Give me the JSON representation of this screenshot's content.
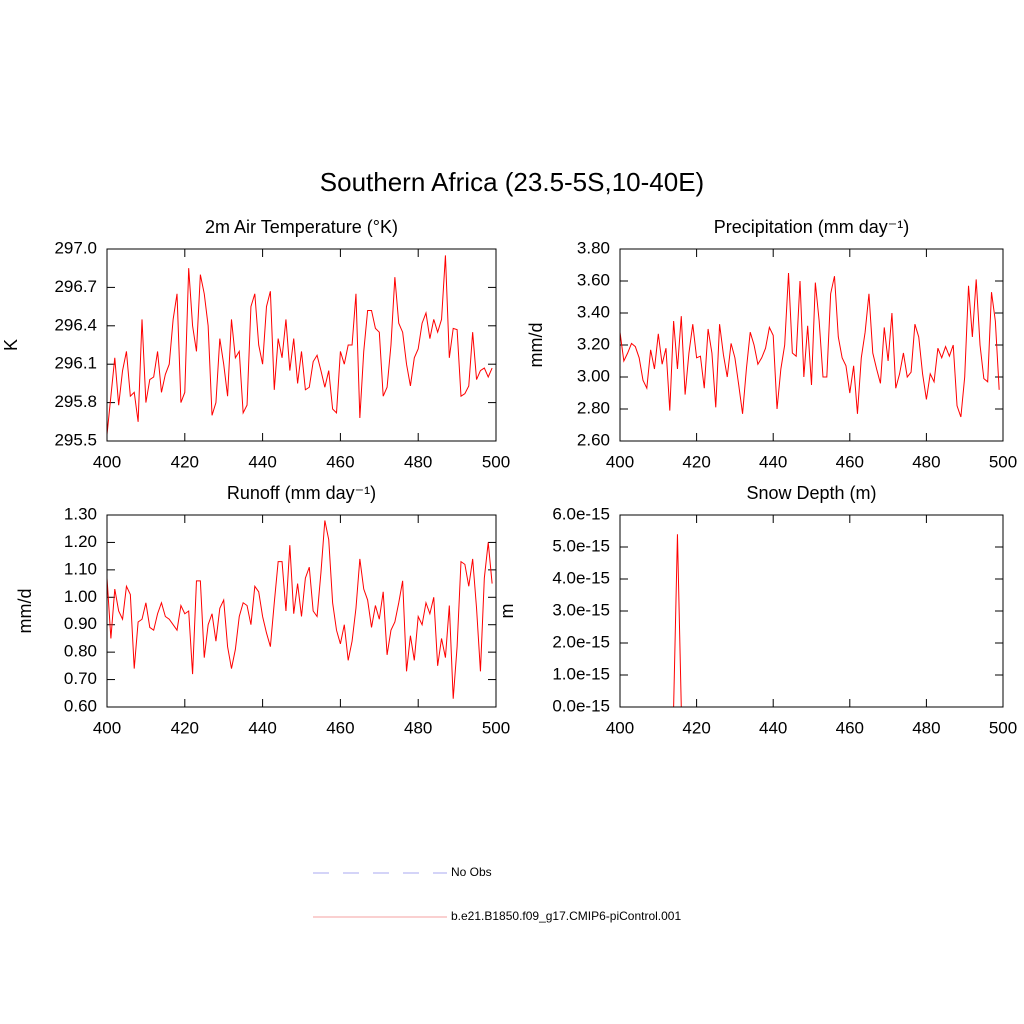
{
  "title": "Southern Africa (23.5-5S,10-40E)",
  "legend": [
    {
      "name": "No Obs",
      "color": "#a8a8f0",
      "dash": true
    },
    {
      "name": "b.e21.B1850.f09_g17.CMIP6-piControl.001",
      "color": "#f4a0a0",
      "dash": false
    }
  ],
  "chart_data": [
    {
      "type": "line",
      "title": "2m Air Temperature (°K)",
      "y_label": "K",
      "color": "#ff0000",
      "x": [
        400,
        401,
        402,
        403,
        404,
        405,
        406,
        407,
        408,
        409,
        410,
        411,
        412,
        413,
        414,
        415,
        416,
        417,
        418,
        419,
        420,
        421,
        422,
        423,
        424,
        425,
        426,
        427,
        428,
        429,
        430,
        431,
        432,
        433,
        434,
        435,
        436,
        437,
        438,
        439,
        440,
        441,
        442,
        443,
        444,
        445,
        446,
        447,
        448,
        449,
        450,
        451,
        452,
        453,
        454,
        455,
        456,
        457,
        458,
        459,
        460,
        461,
        462,
        463,
        464,
        465,
        466,
        467,
        468,
        469,
        470,
        471,
        472,
        473,
        474,
        475,
        476,
        477,
        478,
        479,
        480,
        481,
        482,
        483,
        484,
        485,
        486,
        487,
        488,
        489,
        490,
        491,
        492,
        493,
        494,
        495,
        496,
        497,
        498,
        499
      ],
      "values": [
        295.55,
        295.85,
        296.15,
        295.78,
        296.05,
        296.2,
        295.85,
        295.88,
        295.65,
        296.45,
        295.8,
        295.98,
        296.0,
        296.2,
        295.88,
        296.02,
        296.1,
        296.45,
        296.65,
        295.8,
        295.88,
        296.85,
        296.4,
        296.2,
        296.8,
        296.65,
        296.4,
        295.7,
        295.8,
        296.3,
        296.1,
        295.85,
        296.45,
        296.15,
        296.2,
        295.72,
        295.78,
        296.55,
        296.65,
        296.25,
        296.1,
        296.55,
        296.67,
        295.9,
        296.3,
        296.15,
        296.45,
        296.05,
        296.3,
        295.95,
        296.2,
        295.9,
        295.92,
        296.12,
        296.17,
        296.05,
        295.92,
        296.05,
        295.75,
        295.72,
        296.2,
        296.1,
        296.25,
        296.25,
        296.65,
        295.68,
        296.2,
        296.52,
        296.52,
        296.38,
        296.35,
        295.85,
        295.92,
        296.25,
        296.78,
        296.42,
        296.35,
        296.1,
        295.93,
        296.15,
        296.22,
        296.42,
        296.5,
        296.3,
        296.45,
        296.35,
        296.45,
        296.95,
        296.15,
        296.38,
        296.37,
        295.85,
        295.87,
        295.93,
        296.35,
        295.98,
        296.05,
        296.07,
        296.0,
        296.07
      ],
      "xlim": [
        400,
        500
      ],
      "xticks": [
        400,
        420,
        440,
        460,
        480,
        500
      ],
      "ylim": [
        295.5,
        297.0
      ],
      "yticks": [
        295.5,
        295.8,
        296.1,
        296.4,
        296.7,
        {
          "value": 297.0,
          "label": "297.0"
        }
      ]
    },
    {
      "type": "line",
      "title": "Precipitation (mm day⁻¹)",
      "y_label": "mm/d",
      "color": "#ff0000",
      "x": [
        400,
        401,
        402,
        403,
        404,
        405,
        406,
        407,
        408,
        409,
        410,
        411,
        412,
        413,
        414,
        415,
        416,
        417,
        418,
        419,
        420,
        421,
        422,
        423,
        424,
        425,
        426,
        427,
        428,
        429,
        430,
        431,
        432,
        433,
        434,
        435,
        436,
        437,
        438,
        439,
        440,
        441,
        442,
        443,
        444,
        445,
        446,
        447,
        448,
        449,
        450,
        451,
        452,
        453,
        454,
        455,
        456,
        457,
        458,
        459,
        460,
        461,
        462,
        463,
        464,
        465,
        466,
        467,
        468,
        469,
        470,
        471,
        472,
        473,
        474,
        475,
        476,
        477,
        478,
        479,
        480,
        481,
        482,
        483,
        484,
        485,
        486,
        487,
        488,
        489,
        490,
        491,
        492,
        493,
        494,
        495,
        496,
        497,
        498,
        499
      ],
      "values": [
        3.28,
        3.1,
        3.15,
        3.21,
        3.19,
        3.12,
        2.98,
        2.93,
        3.17,
        3.05,
        3.27,
        3.08,
        3.18,
        2.79,
        3.35,
        3.05,
        3.38,
        2.89,
        3.15,
        3.33,
        3.12,
        3.13,
        2.93,
        3.3,
        3.15,
        2.81,
        3.33,
        3.14,
        3.0,
        3.21,
        3.12,
        2.95,
        2.77,
        3.05,
        3.28,
        3.2,
        3.08,
        3.12,
        3.18,
        3.31,
        3.26,
        2.8,
        3.05,
        3.2,
        3.65,
        3.15,
        3.13,
        3.6,
        3.0,
        3.32,
        2.95,
        3.59,
        3.35,
        3.0,
        3.0,
        3.52,
        3.63,
        3.25,
        3.12,
        3.07,
        2.9,
        3.07,
        2.77,
        3.12,
        3.28,
        3.52,
        3.15,
        3.05,
        2.96,
        3.31,
        3.1,
        3.4,
        2.93,
        3.02,
        3.15,
        3.0,
        3.03,
        3.33,
        3.25,
        3.02,
        2.86,
        3.02,
        2.97,
        3.18,
        3.12,
        3.19,
        3.13,
        3.2,
        2.82,
        2.75,
        3.0,
        3.57,
        3.25,
        3.61,
        3.2,
        2.99,
        2.97,
        3.53,
        3.35,
        2.92
      ],
      "xlim": [
        400,
        500
      ],
      "xticks": [
        400,
        420,
        440,
        460,
        480,
        500
      ],
      "ylim": [
        2.6,
        3.8
      ],
      "yticks": [
        {
          "value": 2.6,
          "label": "2.60"
        },
        {
          "value": 2.8,
          "label": "2.80"
        },
        {
          "value": 3.0,
          "label": "3.00"
        },
        {
          "value": 3.2,
          "label": "3.20"
        },
        {
          "value": 3.4,
          "label": "3.40"
        },
        {
          "value": 3.6,
          "label": "3.60"
        },
        {
          "value": 3.8,
          "label": "3.80"
        }
      ]
    },
    {
      "type": "line",
      "title": "Runoff (mm day⁻¹)",
      "y_label": "mm/d",
      "color": "#ff0000",
      "x": [
        400,
        401,
        402,
        403,
        404,
        405,
        406,
        407,
        408,
        409,
        410,
        411,
        412,
        413,
        414,
        415,
        416,
        417,
        418,
        419,
        420,
        421,
        422,
        423,
        424,
        425,
        426,
        427,
        428,
        429,
        430,
        431,
        432,
        433,
        434,
        435,
        436,
        437,
        438,
        439,
        440,
        441,
        442,
        443,
        444,
        445,
        446,
        447,
        448,
        449,
        450,
        451,
        452,
        453,
        454,
        455,
        456,
        457,
        458,
        459,
        460,
        461,
        462,
        463,
        464,
        465,
        466,
        467,
        468,
        469,
        470,
        471,
        472,
        473,
        474,
        475,
        476,
        477,
        478,
        479,
        480,
        481,
        482,
        483,
        484,
        485,
        486,
        487,
        488,
        489,
        490,
        491,
        492,
        493,
        494,
        495,
        496,
        497,
        498,
        499
      ],
      "values": [
        1.07,
        0.85,
        1.03,
        0.95,
        0.92,
        1.04,
        1.01,
        0.74,
        0.91,
        0.92,
        0.98,
        0.89,
        0.88,
        0.94,
        0.98,
        0.93,
        0.92,
        0.9,
        0.88,
        0.97,
        0.94,
        0.95,
        0.72,
        1.06,
        1.06,
        0.78,
        0.9,
        0.94,
        0.84,
        0.96,
        0.99,
        0.82,
        0.74,
        0.81,
        0.93,
        0.98,
        0.97,
        0.9,
        1.04,
        1.02,
        0.93,
        0.87,
        0.82,
        0.98,
        1.13,
        1.13,
        0.95,
        1.19,
        0.94,
        1.05,
        0.93,
        1.07,
        1.11,
        0.95,
        0.93,
        1.09,
        1.28,
        1.21,
        0.98,
        0.88,
        0.83,
        0.9,
        0.77,
        0.84,
        0.96,
        1.14,
        1.03,
        0.99,
        0.89,
        0.97,
        0.92,
        1.02,
        0.79,
        0.88,
        0.91,
        0.98,
        1.06,
        0.73,
        0.86,
        0.77,
        0.93,
        0.9,
        0.98,
        0.94,
        1.0,
        0.75,
        0.85,
        0.78,
        0.97,
        0.63,
        0.82,
        1.13,
        1.12,
        1.04,
        1.14,
        0.96,
        0.73,
        1.07,
        1.2,
        1.05
      ],
      "xlim": [
        400,
        500
      ],
      "xticks": [
        400,
        420,
        440,
        460,
        480,
        500
      ],
      "ylim": [
        0.6,
        1.3
      ],
      "yticks": [
        {
          "value": 0.6,
          "label": "0.60"
        },
        {
          "value": 0.7,
          "label": "0.70"
        },
        {
          "value": 0.8,
          "label": "0.80"
        },
        {
          "value": 0.9,
          "label": "0.90"
        },
        {
          "value": 1.0,
          "label": "1.00"
        },
        {
          "value": 1.1,
          "label": "1.10"
        },
        {
          "value": 1.2,
          "label": "1.20"
        },
        {
          "value": 1.3,
          "label": "1.30"
        }
      ]
    },
    {
      "type": "line",
      "title": "Snow Depth (m)",
      "y_label": "m",
      "color": "#ff0000",
      "x": [
        400,
        401,
        402,
        403,
        404,
        405,
        406,
        407,
        408,
        409,
        410,
        411,
        412,
        413,
        414,
        415,
        416,
        417,
        418,
        419,
        420,
        421,
        422,
        423,
        424,
        425,
        426,
        427,
        428,
        429,
        430,
        431,
        432,
        433,
        434,
        435,
        436,
        437,
        438,
        439,
        440,
        441,
        442,
        443,
        444,
        445,
        446,
        447,
        448,
        449,
        450,
        451,
        452,
        453,
        454,
        455,
        456,
        457,
        458,
        459,
        460,
        461,
        462,
        463,
        464,
        465,
        466,
        467,
        468,
        469,
        470,
        471,
        472,
        473,
        474,
        475,
        476,
        477,
        478,
        479,
        480,
        481,
        482,
        483,
        484,
        485,
        486,
        487,
        488,
        489,
        490,
        491,
        492,
        493,
        494,
        495,
        496,
        497,
        498,
        499
      ],
      "values": [
        0,
        0,
        0,
        0,
        0,
        0,
        0,
        0,
        0,
        0,
        0,
        0,
        0,
        0,
        0,
        5.4e-15,
        0,
        0,
        0,
        0,
        0,
        0,
        0,
        0,
        0,
        0,
        0,
        0,
        0,
        0,
        0,
        0,
        0,
        0,
        0,
        0,
        0,
        0,
        0,
        0,
        0,
        0,
        0,
        0,
        0,
        0,
        0,
        0,
        0,
        0,
        0,
        0,
        0,
        0,
        0,
        0,
        0,
        0,
        0,
        0,
        0,
        0,
        0,
        0,
        0,
        0,
        0,
        0,
        0,
        0,
        0,
        0,
        0,
        0,
        0,
        0,
        0,
        0,
        0,
        0,
        0,
        0,
        0,
        0,
        0,
        0,
        0,
        0,
        0,
        0,
        0,
        0,
        0,
        0,
        0,
        0,
        0,
        0,
        0,
        0
      ],
      "xlim": [
        400,
        500
      ],
      "xticks": [
        400,
        420,
        440,
        460,
        480,
        500
      ],
      "ylim": [
        0,
        6e-15
      ],
      "yticks": [
        {
          "value": 0,
          "label": "0.0e-15"
        },
        {
          "value": 1e-15,
          "label": "1.0e-15"
        },
        {
          "value": 2e-15,
          "label": "2.0e-15"
        },
        {
          "value": 3e-15,
          "label": "3.0e-15"
        },
        {
          "value": 4e-15,
          "label": "4.0e-15"
        },
        {
          "value": 5e-15,
          "label": "5.0e-15"
        },
        {
          "value": 6e-15,
          "label": "6.0e-15"
        }
      ]
    }
  ]
}
